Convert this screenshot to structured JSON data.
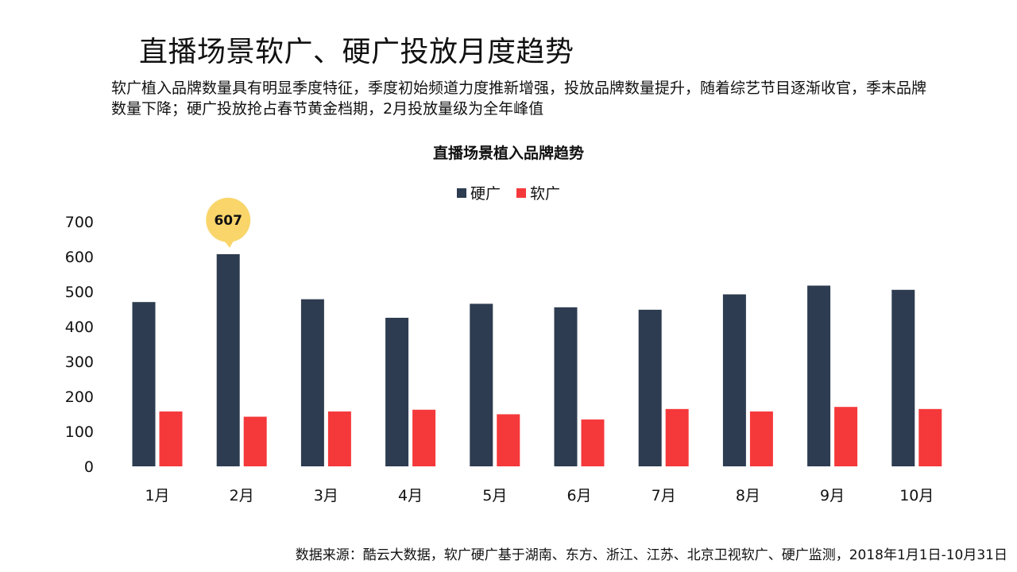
{
  "page": {
    "title": "直播场景软广、硬广投放月度趋势",
    "subtitle": "软广植入品牌数量具有明显季度特征，季度初始频道力度推新增强，投放品牌数量提升，随着综艺节目逐渐收官，季末品牌数量下降；硬广投放抢占春节黄金档期，2月投放量级为全年峰值",
    "source": "数据来源：酷云大数据，软广硬广基于湖南、东方、浙江、江苏、北京卫视软广、硬广监测，2018年1月1日-10月31日"
  },
  "colors": {
    "hard_ad": "#2d3c50",
    "soft_ad": "#f5393b",
    "callout": "#f9d56a"
  },
  "chart_data": {
    "type": "bar",
    "title": "直播场景植入品牌趋势",
    "categories": [
      "1月",
      "2月",
      "3月",
      "4月",
      "5月",
      "6月",
      "7月",
      "8月",
      "9月",
      "10月"
    ],
    "series": [
      {
        "name": "硬广",
        "values": [
          470,
          607,
          478,
          425,
          465,
          455,
          448,
          492,
          517,
          505
        ]
      },
      {
        "name": "软广",
        "values": [
          157,
          142,
          157,
          162,
          149,
          134,
          164,
          157,
          170,
          164
        ]
      }
    ],
    "ylim": [
      0,
      700
    ],
    "yticks": [
      0,
      100,
      200,
      300,
      400,
      500,
      600,
      700
    ],
    "grid": false,
    "legend_position": "top-center",
    "annotations": [
      {
        "category": "2月",
        "series": "硬广",
        "text": "607"
      }
    ]
  }
}
